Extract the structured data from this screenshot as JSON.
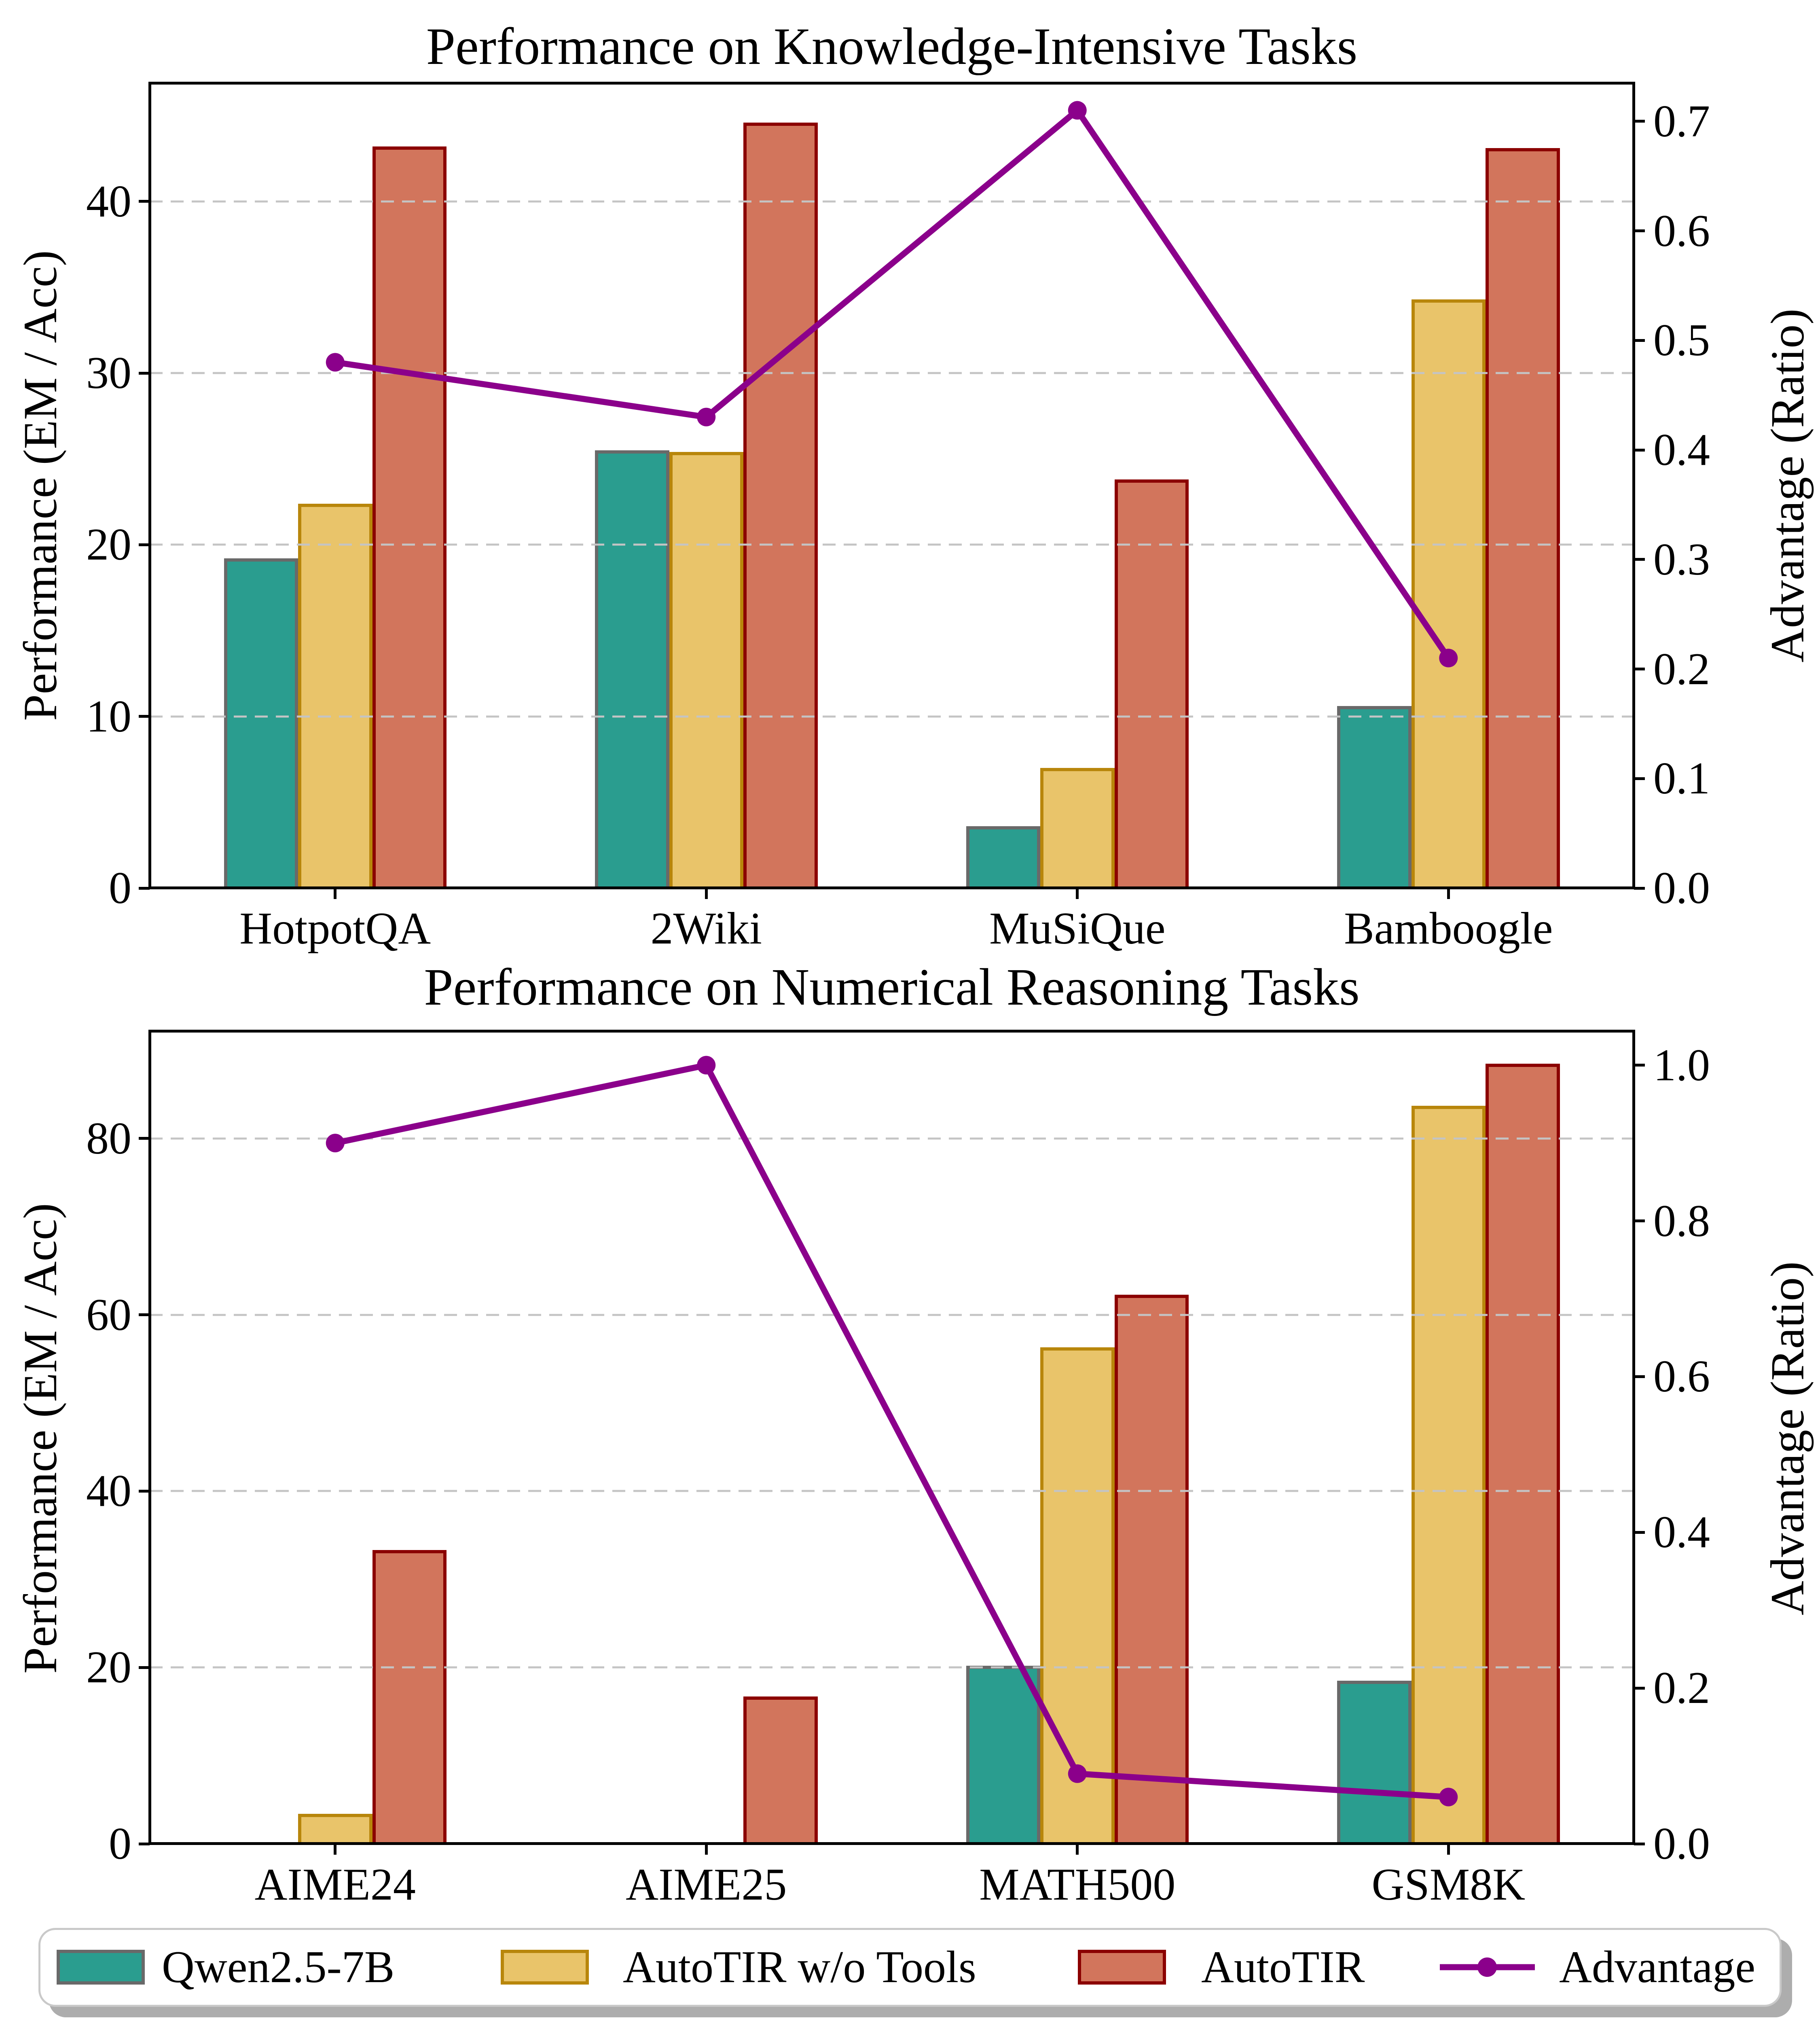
{
  "figure": {
    "background": "#ffffff"
  },
  "colors": {
    "bar_fills": [
      "#2a9d8f",
      "#e9c46a",
      "#d2755c"
    ],
    "bar_edges": [
      "#696969",
      "#b8860b",
      "#8b0000"
    ],
    "advantage_line": "#8b008b",
    "grid": "#c4c4c4",
    "frame": "#000000",
    "legend_border": "#c9c9c9"
  },
  "legend": {
    "items": [
      {
        "label": "Qwen2.5-7B",
        "type": "patch",
        "fill": "#2a9d8f",
        "edge": "#696969"
      },
      {
        "label": "AutoTIR w/o Tools",
        "type": "patch",
        "fill": "#e9c46a",
        "edge": "#b8860b"
      },
      {
        "label": "AutoTIR",
        "type": "patch",
        "fill": "#d2755c",
        "edge": "#8b0000"
      },
      {
        "label": "Advantage",
        "type": "line",
        "color": "#8b008b"
      }
    ]
  },
  "chart_data": [
    {
      "type": "bar",
      "title": "Performance on Knowledge-Intensive Tasks",
      "ylabel": "Performance (EM / Acc)",
      "y2label": "Advantage (Ratio)",
      "categories": [
        "HotpotQA",
        "2Wiki",
        "MuSiQue",
        "Bamboogle"
      ],
      "series": [
        {
          "name": "Qwen2.5-7B",
          "values": [
            19.2,
            25.5,
            3.6,
            10.6
          ]
        },
        {
          "name": "AutoTIR w/o Tools",
          "values": [
            22.4,
            25.4,
            7.0,
            34.3
          ]
        },
        {
          "name": "AutoTIR",
          "values": [
            43.2,
            44.6,
            23.8,
            43.1
          ]
        }
      ],
      "line_series": {
        "name": "Advantage",
        "axis": "right",
        "values": [
          0.48,
          0.43,
          0.71,
          0.21
        ]
      },
      "left_axis": {
        "ticks": [
          0,
          10,
          20,
          30,
          40
        ],
        "max": 46.9,
        "min": 0
      },
      "right_axis": {
        "tick_values": [
          0.0,
          0.1,
          0.2,
          0.3,
          0.4,
          0.5,
          0.6,
          0.7
        ],
        "max": 0.735,
        "min": 0,
        "decimals": 1
      },
      "grid": "horizontal-dashed",
      "legend_position": "bottom"
    },
    {
      "type": "bar",
      "title": "Performance on Numerical Reasoning Tasks",
      "ylabel": "Performance (EM / Acc)",
      "y2label": "Advantage (Ratio)",
      "categories": [
        "AIME24",
        "AIME25",
        "MATH500",
        "GSM8K"
      ],
      "series": [
        {
          "name": "Qwen2.5-7B",
          "values": [
            0,
            0,
            20.2,
            18.5
          ]
        },
        {
          "name": "AutoTIR w/o Tools",
          "values": [
            3.4,
            0,
            56.3,
            83.7
          ]
        },
        {
          "name": "AutoTIR",
          "values": [
            33.3,
            16.7,
            62.3,
            88.5
          ]
        }
      ],
      "line_series": {
        "name": "Advantage",
        "axis": "right",
        "values": [
          0.9,
          1.0,
          0.09,
          0.06
        ]
      },
      "left_axis": {
        "ticks": [
          0,
          20,
          40,
          60,
          80
        ],
        "max": 92.2,
        "min": 0
      },
      "right_axis": {
        "tick_values": [
          0.0,
          0.2,
          0.4,
          0.6,
          0.8,
          1.0
        ],
        "max": 1.044,
        "min": 0,
        "decimals": 1
      },
      "grid": "horizontal-dashed",
      "legend_position": "bottom"
    }
  ]
}
